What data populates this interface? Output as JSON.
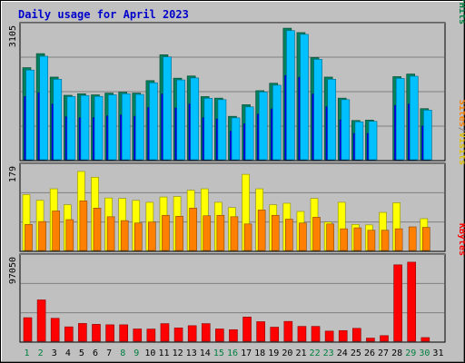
{
  "chart_data": {
    "type": "bar",
    "title": "Daily usage for April 2023",
    "categories": [
      "1",
      "2",
      "3",
      "4",
      "5",
      "6",
      "7",
      "8",
      "9",
      "10",
      "11",
      "12",
      "13",
      "14",
      "15",
      "16",
      "17",
      "18",
      "19",
      "20",
      "21",
      "22",
      "23",
      "24",
      "25",
      "26",
      "27",
      "28",
      "29",
      "30",
      "31"
    ],
    "weekend_days": [
      "1",
      "2",
      "8",
      "9",
      "15",
      "16",
      "22",
      "23",
      "29",
      "30"
    ],
    "panels": [
      {
        "axis_max_label": "3105",
        "ylim": [
          0,
          3105
        ],
        "legend": [
          {
            "text": "Hits",
            "color": "#008040"
          },
          {
            "text": "/",
            "color": "#008040"
          },
          {
            "text": "Files",
            "color": "#0000ff"
          },
          {
            "text": "/",
            "color": "#008040"
          },
          {
            "text": "Pages",
            "color": "#00c0ff"
          }
        ],
        "series": [
          {
            "name": "Hits",
            "color": "#00805c",
            "values": [
              2100,
              2420,
              1885,
              1470,
              1505,
              1480,
              1520,
              1540,
              1520,
              1805,
              2395,
              1860,
              1910,
              1440,
              1405,
              990,
              1255,
              1575,
              1745,
              3000,
              2900,
              2330,
              1885,
              1405,
              895,
              905,
              null,
              1895,
              1955,
              1165,
              null
            ]
          },
          {
            "name": "Files",
            "color": "#0000ff",
            "values": [
              1440,
              1530,
              1270,
              980,
              960,
              960,
              1000,
              1020,
              990,
              1190,
              1500,
              1180,
              1270,
              960,
              930,
              650,
              820,
              1040,
              1160,
              1920,
              1880,
              1500,
              1210,
              910,
              600,
              600,
              null,
              1240,
              1270,
              770,
              null
            ]
          },
          {
            "name": "Pages",
            "color": "#00c0ff",
            "values": [
              2045,
              2360,
              1835,
              1440,
              1465,
              1445,
              1480,
              1505,
              1490,
              1755,
              2345,
              1820,
              1865,
              1400,
              1370,
              955,
              1205,
              1545,
              1700,
              2945,
              2860,
              2290,
              1835,
              1370,
              865,
              875,
              null,
              1855,
              1905,
              1130,
              null
            ]
          }
        ]
      },
      {
        "axis_max_label": "179",
        "ylim": [
          0,
          179
        ],
        "legend": [
          {
            "text": "Visits",
            "color": "#e0c000"
          },
          {
            "text": "/",
            "color": "#808080"
          },
          {
            "text": "Sites",
            "color": "#ff8000"
          }
        ],
        "series": [
          {
            "name": "Visits",
            "color": "#ffff00",
            "values": [
              116,
              104,
              128,
              95,
              164,
              152,
              109,
              108,
              104,
              100,
              111,
              112,
              125,
              128,
              100,
              89,
              158,
              128,
              95,
              98,
              81,
              108,
              59,
              100,
              54,
              53,
              79,
              99,
              null,
              66,
              null
            ]
          },
          {
            "name": "Sites",
            "color": "#ff8000",
            "values": [
              54,
              60,
              82,
              64,
              103,
              88,
              70,
              62,
              57,
              59,
              73,
              71,
              88,
              72,
              73,
              70,
              55,
              84,
              73,
              65,
              57,
              69,
              55,
              45,
              47,
              42,
              42,
              45,
              49,
              48,
              null
            ]
          }
        ]
      },
      {
        "axis_max_label": "97050",
        "ylim": [
          0,
          97050
        ],
        "legend": [
          {
            "text": "KBytes",
            "color": "#ff0000"
          }
        ],
        "series": [
          {
            "name": "KBytes",
            "color": "#ff0000",
            "values": [
              26500,
              46500,
              25800,
              16200,
              20000,
              19000,
              18500,
              18500,
              13800,
              13700,
              19800,
              15000,
              17500,
              19800,
              13800,
              13000,
              27200,
              22000,
              15800,
              22300,
              16700,
              16700,
              11400,
              12000,
              14500,
              3500,
              6300,
              86000,
              89000,
              4100,
              null
            ]
          }
        ]
      }
    ]
  }
}
